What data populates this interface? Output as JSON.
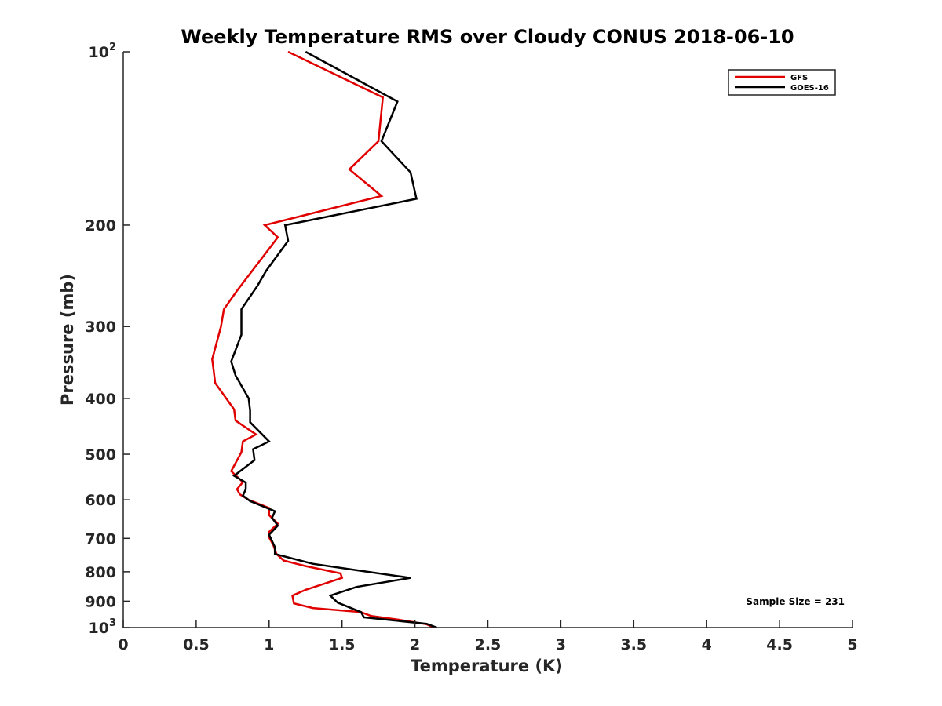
{
  "chart_data": {
    "type": "line",
    "title": "Weekly Temperature RMS over Cloudy CONUS 2018-06-10",
    "xlabel": "Temperature (K)",
    "ylabel": "Pressure (mb)",
    "xlim": [
      0,
      5
    ],
    "ylim": [
      100,
      1000
    ],
    "y_scale": "log",
    "y_reversed": true,
    "x_ticks": [
      "0",
      "0.5",
      "1",
      "1.5",
      "2",
      "2.5",
      "3",
      "3.5",
      "4",
      "4.5",
      "5"
    ],
    "y_ticks": [
      {
        "value": 100,
        "base": "10",
        "exp": "2"
      },
      {
        "value": 200,
        "label": "200"
      },
      {
        "value": 300,
        "label": "300"
      },
      {
        "value": 400,
        "label": "400"
      },
      {
        "value": 500,
        "label": "500"
      },
      {
        "value": 600,
        "label": "600"
      },
      {
        "value": 700,
        "label": "700"
      },
      {
        "value": 800,
        "label": "800"
      },
      {
        "value": 900,
        "label": "900"
      },
      {
        "value": 1000,
        "base": "10",
        "exp": "3"
      }
    ],
    "grid": false,
    "legend_position": "top-right",
    "annotation": "Sample Size = 231",
    "series": [
      {
        "name": "GFS",
        "color": "#e00000",
        "points": [
          [
            1.13,
            100
          ],
          [
            1.78,
            120
          ],
          [
            1.75,
            143
          ],
          [
            1.55,
            160
          ],
          [
            1.77,
            178
          ],
          [
            0.97,
            200
          ],
          [
            1.06,
            210
          ],
          [
            0.78,
            260
          ],
          [
            0.69,
            280
          ],
          [
            0.67,
            300
          ],
          [
            0.61,
            342
          ],
          [
            0.62,
            358
          ],
          [
            0.63,
            376
          ],
          [
            0.76,
            418
          ],
          [
            0.77,
            437
          ],
          [
            0.91,
            462
          ],
          [
            0.82,
            475
          ],
          [
            0.81,
            496
          ],
          [
            0.74,
            535
          ],
          [
            0.82,
            559
          ],
          [
            0.78,
            575
          ],
          [
            0.8,
            587
          ],
          [
            0.86,
            600
          ],
          [
            1.0,
            620
          ],
          [
            1.0,
            638
          ],
          [
            1.06,
            660
          ],
          [
            1.0,
            682
          ],
          [
            1.0,
            697
          ],
          [
            1.03,
            720
          ],
          [
            1.05,
            745
          ],
          [
            1.1,
            765
          ],
          [
            1.25,
            782
          ],
          [
            1.49,
            805
          ],
          [
            1.5,
            820
          ],
          [
            1.25,
            860
          ],
          [
            1.16,
            880
          ],
          [
            1.17,
            908
          ],
          [
            1.3,
            925
          ],
          [
            1.63,
            940
          ],
          [
            1.7,
            955
          ],
          [
            1.9,
            970
          ],
          [
            2.08,
            987
          ],
          [
            2.13,
            1000
          ]
        ]
      },
      {
        "name": "GOES-16",
        "color": "#000000",
        "points": [
          [
            1.25,
            100
          ],
          [
            1.88,
            122
          ],
          [
            1.77,
            143
          ],
          [
            1.97,
            162
          ],
          [
            2.01,
            180
          ],
          [
            1.11,
            200
          ],
          [
            1.13,
            213
          ],
          [
            0.98,
            240
          ],
          [
            0.92,
            255
          ],
          [
            0.81,
            280
          ],
          [
            0.81,
            310
          ],
          [
            0.74,
            345
          ],
          [
            0.77,
            365
          ],
          [
            0.86,
            400
          ],
          [
            0.87,
            420
          ],
          [
            0.87,
            440
          ],
          [
            1.0,
            475
          ],
          [
            0.89,
            490
          ],
          [
            0.9,
            512
          ],
          [
            0.76,
            545
          ],
          [
            0.84,
            560
          ],
          [
            0.84,
            575
          ],
          [
            0.82,
            590
          ],
          [
            0.87,
            603
          ],
          [
            1.04,
            628
          ],
          [
            1.02,
            645
          ],
          [
            1.06,
            665
          ],
          [
            1.0,
            690
          ],
          [
            1.04,
            725
          ],
          [
            1.04,
            745
          ],
          [
            1.3,
            775
          ],
          [
            1.6,
            795
          ],
          [
            1.97,
            820
          ],
          [
            1.6,
            850
          ],
          [
            1.42,
            880
          ],
          [
            1.47,
            905
          ],
          [
            1.63,
            940
          ],
          [
            1.65,
            960
          ],
          [
            2.08,
            985
          ],
          [
            2.15,
            1000
          ]
        ]
      }
    ]
  }
}
